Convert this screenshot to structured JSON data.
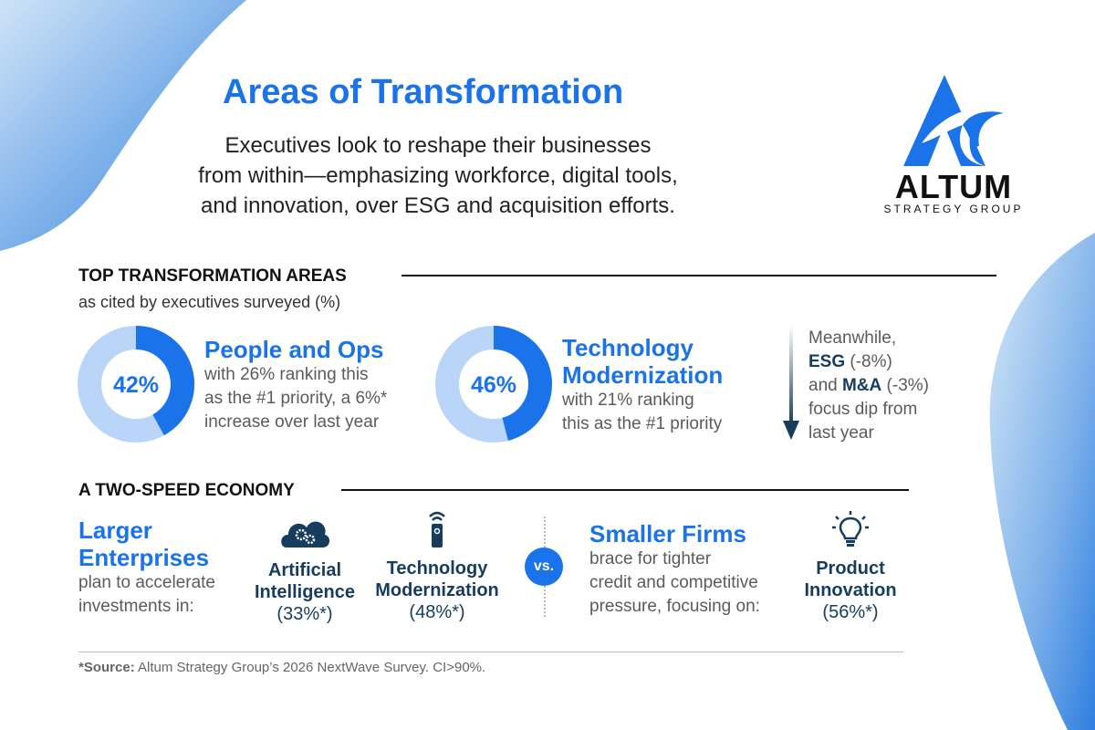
{
  "header": {
    "title": "Areas of Transformation",
    "subtitle_lines": [
      "Executives look to reshape their businesses",
      "from within—emphasizing workforce, digital tools,",
      "and innovation, over ESG and acquisition efforts."
    ]
  },
  "logo": {
    "name": "ALTUM",
    "tagline": "STRATEGY GROUP"
  },
  "colors": {
    "accent": "#1a73e8",
    "light": "#b9d6f8",
    "navy": "#163c5e"
  },
  "top": {
    "heading": "TOP TRANSFORMATION AREAS",
    "subheading": "as cited by executives surveyed (%)",
    "cards": [
      {
        "value": 42,
        "label": "42%",
        "title": "People and Ops",
        "lines": [
          "with 26% ranking this",
          "as the #1 priority, a 6%*",
          "increase over last year"
        ]
      },
      {
        "value": 46,
        "label": "46%",
        "title_lines": [
          "Technology",
          "Modernization"
        ],
        "lines": [
          "with 21% ranking",
          "this as the #1 priority"
        ]
      }
    ],
    "meanwhile": {
      "l1": "Meanwhile,",
      "esg": "ESG",
      "esg_val": " (-8%)",
      "and": "and ",
      "ma": "M&A",
      "ma_val": " (-3%)",
      "l4": "focus dip from",
      "l5": "last year"
    }
  },
  "economy": {
    "heading": "A TWO-SPEED ECONOMY",
    "larger": {
      "title_lines": [
        "Larger",
        "Enterprises"
      ],
      "lines": [
        "plan to accelerate",
        "investments in:"
      ]
    },
    "items": [
      {
        "icon": "cloud-gears-icon",
        "l1": "Artificial",
        "l2": "Intelligence",
        "pct": "(33%*)"
      },
      {
        "icon": "remote-signal-icon",
        "l1": "Technology",
        "l2": "Modernization",
        "pct": "(48%*)"
      },
      {
        "icon": "lightbulb-icon",
        "l1": "Product",
        "l2": "Innovation",
        "pct": "(56%*)"
      }
    ],
    "vs": "vs.",
    "smaller": {
      "title": "Smaller Firms",
      "lines": [
        "brace for tighter",
        "credit and competitive",
        "pressure, focusing on:"
      ]
    }
  },
  "footer": {
    "source_label": "*Source:",
    "source_text": " Altum Strategy Group’s 2026 NextWave Survey. CI>90%."
  }
}
